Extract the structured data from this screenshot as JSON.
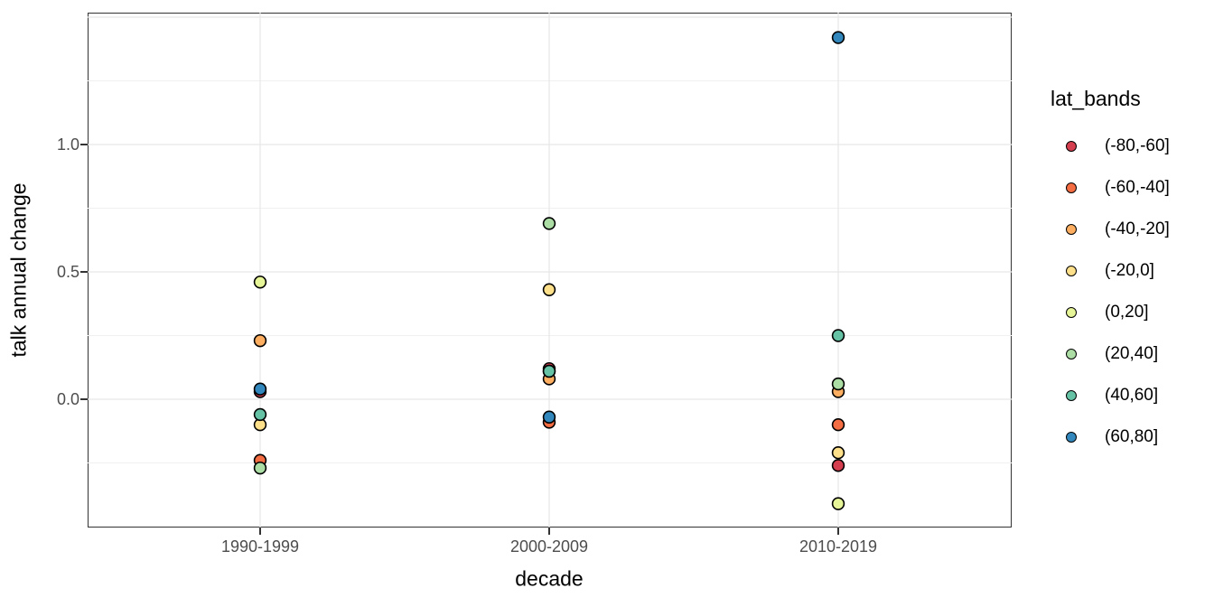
{
  "chart_data": {
    "type": "scatter",
    "xlabel": "decade",
    "ylabel": "talk annual change",
    "legend_title": "lat_bands",
    "legend_position": "right",
    "categories": [
      "1990-1999",
      "2000-2009",
      "2010-2019"
    ],
    "y_tick_labels": [
      "0.0",
      "0.5",
      "1.0"
    ],
    "y_tick_values": [
      0.0,
      0.5,
      1.0
    ],
    "y_grid_major": [
      0.0,
      0.5,
      1.0,
      1.5
    ],
    "y_grid_minor": [
      -0.25,
      0.25,
      0.75,
      1.25
    ],
    "ylim": [
      -0.5,
      1.52
    ],
    "grid_on": true,
    "series": [
      {
        "name": "(-80,-60]",
        "color": "#d53e4f",
        "values": [
          0.03,
          0.12,
          -0.26
        ]
      },
      {
        "name": "(-60,-40]",
        "color": "#f46d43",
        "values": [
          -0.24,
          -0.09,
          -0.1
        ]
      },
      {
        "name": "(-40,-20]",
        "color": "#fdae61",
        "values": [
          0.23,
          0.08,
          0.03
        ]
      },
      {
        "name": "(-20,0]",
        "color": "#fee08b",
        "values": [
          -0.1,
          0.43,
          -0.21
        ]
      },
      {
        "name": "(0,20]",
        "color": "#e6f598",
        "values": [
          0.46,
          0.11,
          -0.41
        ]
      },
      {
        "name": "(20,40]",
        "color": "#abdda4",
        "values": [
          -0.27,
          0.69,
          0.06
        ]
      },
      {
        "name": "(40,60]",
        "color": "#66c2a5",
        "values": [
          -0.06,
          0.11,
          0.25
        ]
      },
      {
        "name": "(60,80]",
        "color": "#3288bd",
        "values": [
          0.04,
          -0.07,
          1.42
        ]
      }
    ],
    "point_style": {
      "stroke": "#000000",
      "radius_px": 6.4,
      "stroke_width": 1.6
    },
    "colors": {
      "grid_major": "#e6e6e6",
      "grid_minor": "#f0f0f0",
      "panel_border": "#333333",
      "tick_label": "#4d4d4d",
      "axis_title": "#000000"
    }
  }
}
